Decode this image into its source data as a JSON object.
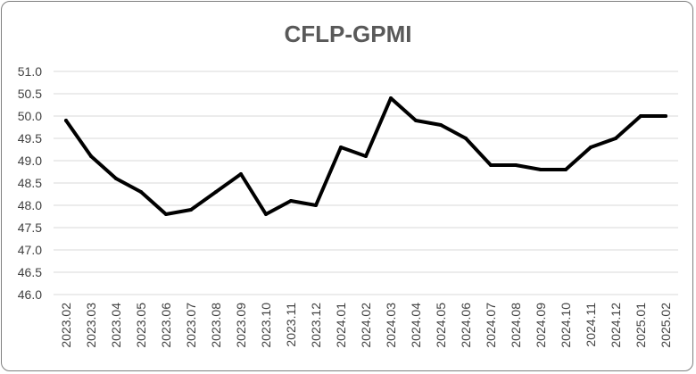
{
  "chart_data": {
    "type": "line",
    "title": "CFLP-GPMI",
    "xlabel": "",
    "ylabel": "",
    "ylim": [
      46.0,
      51.0
    ],
    "ytick_step": 0.5,
    "grid": true,
    "legend": "none",
    "categories": [
      "2023.02",
      "2023.03",
      "2023.04",
      "2023.05",
      "2023.06",
      "2023.07",
      "2023.08",
      "2023.09",
      "2023.10",
      "2023.11",
      "2023.12",
      "2024.01",
      "2024.02",
      "2024.03",
      "2024.04",
      "2024.05",
      "2024.06",
      "2024.07",
      "2024.08",
      "2024.09",
      "2024.10",
      "2024.11",
      "2024.12",
      "2025.01",
      "2025.02"
    ],
    "yticks": [
      "46.0",
      "46.5",
      "47.0",
      "47.5",
      "48.0",
      "48.5",
      "49.0",
      "49.5",
      "50.0",
      "50.5",
      "51.0"
    ],
    "series": [
      {
        "values": [
          49.9,
          49.1,
          48.6,
          48.3,
          47.8,
          47.9,
          48.3,
          48.7,
          47.8,
          48.1,
          48.0,
          49.3,
          49.1,
          50.4,
          49.9,
          49.8,
          49.5,
          48.9,
          48.9,
          48.8,
          48.8,
          49.3,
          49.5,
          50.0,
          50.0
        ],
        "color": "#000000"
      }
    ]
  }
}
